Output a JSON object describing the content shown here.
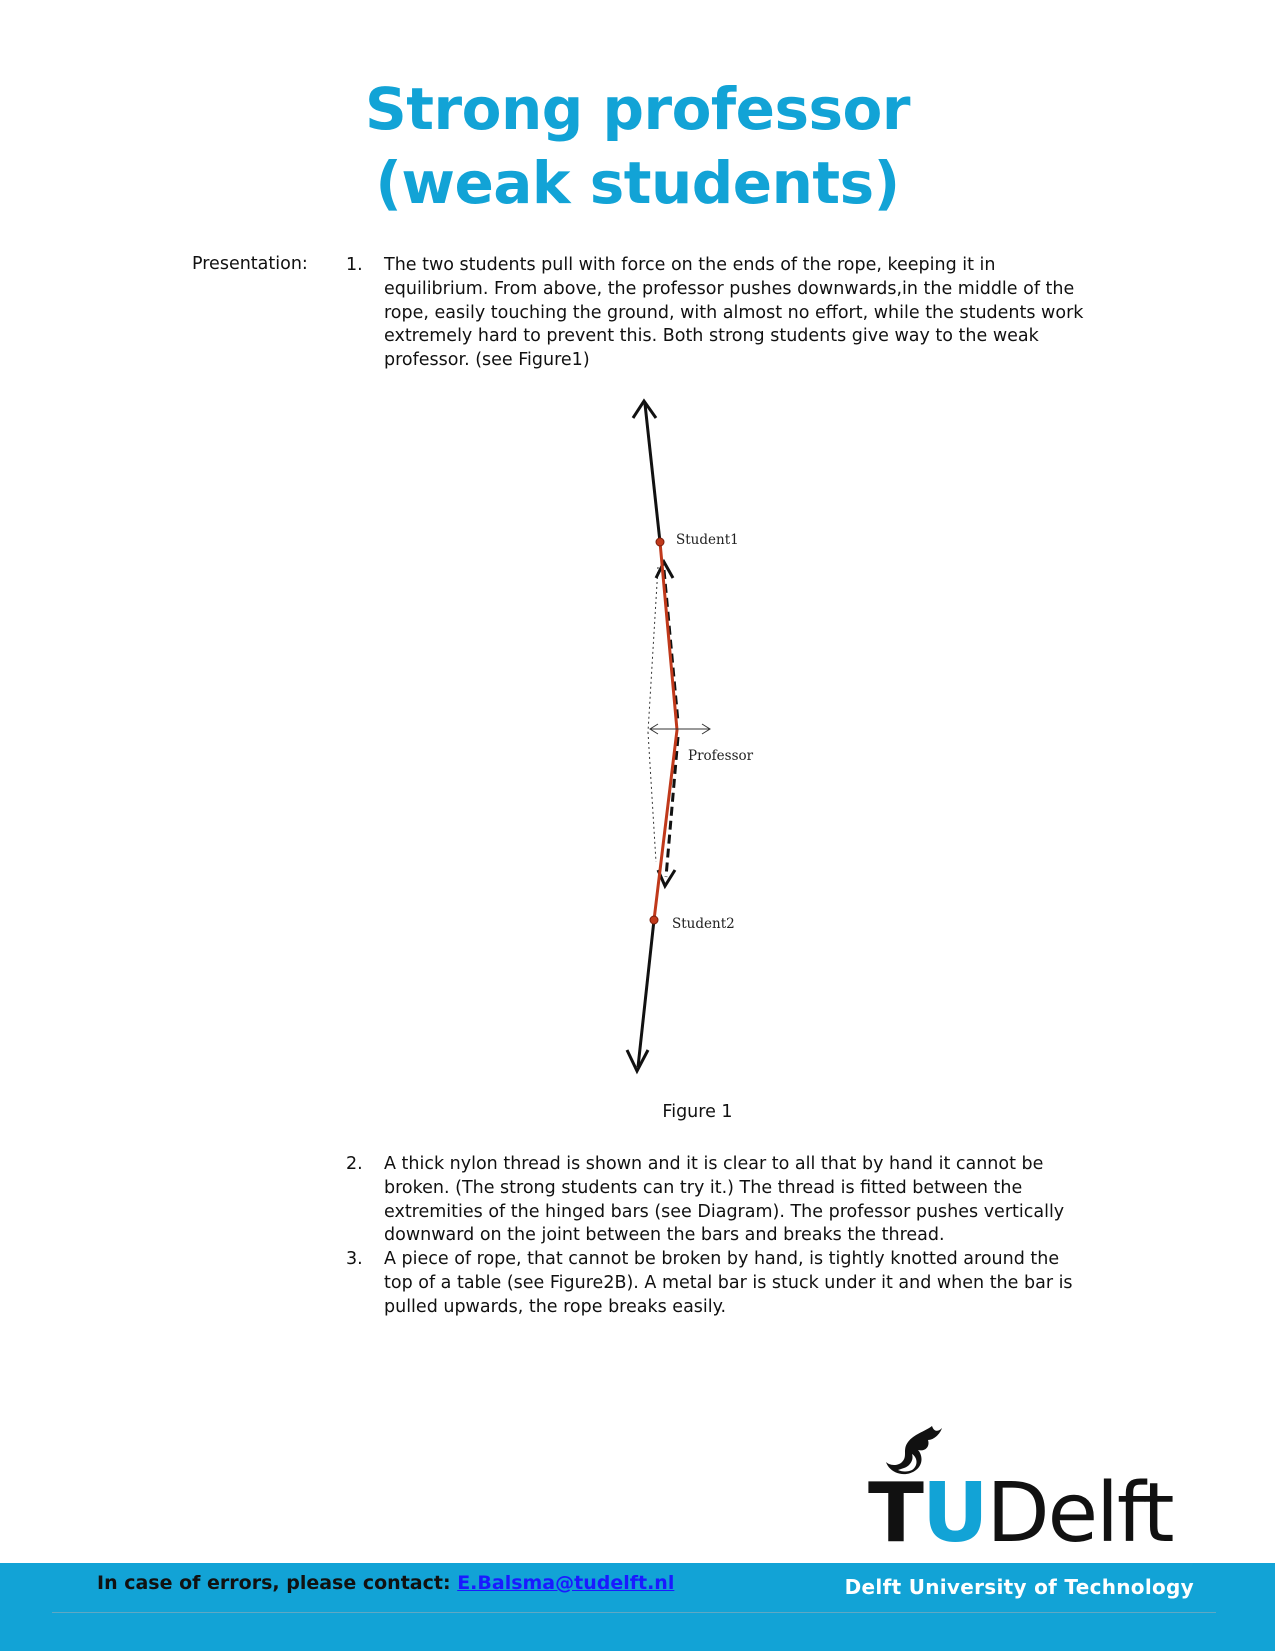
{
  "title": {
    "line1": "Strong professor",
    "line2": "(weak students)"
  },
  "presentation_label": "Presentation:",
  "items": [
    {
      "num": "1.",
      "text": "The two students pull with force on the ends of the rope, keeping it in equilibrium. From above, the professor pushes downwards,in the middle of the rope, easily touching the ground, with almost no effort, while the students work extremely hard to prevent this. Both strong students give way to the weak professor. (see Figure1)"
    },
    {
      "num": "2.",
      "text": "A thick nylon thread is shown and it is clear to all that by hand it cannot be broken. (The strong students can try it.) The thread is fitted between the extremities of the hinged bars (see Diagram). The professor pushes vertically downward on the joint between the bars and breaks the thread."
    },
    {
      "num": "3.",
      "text": "A piece of rope, that cannot be broken by hand, is tightly knotted around the top of a table (see Figure2B). A metal bar is stuck under it and when the bar is pulled upwards, the rope breaks easily."
    }
  ],
  "figure": {
    "labels": {
      "student1": "Student1",
      "professor": "Professor",
      "student2": "Student2"
    },
    "caption": "Figure 1"
  },
  "footer": {
    "contact_prefix": "In case of errors, please contact:",
    "contact_email": "E.Balsma@tudelft.nl",
    "university": "Delft University of Technology"
  },
  "logo": {
    "t": "T",
    "u": "U",
    "delft": "Delft"
  },
  "colors": {
    "accent": "#12a3d6",
    "rope": "#c0391b",
    "link": "#1a1aff"
  }
}
